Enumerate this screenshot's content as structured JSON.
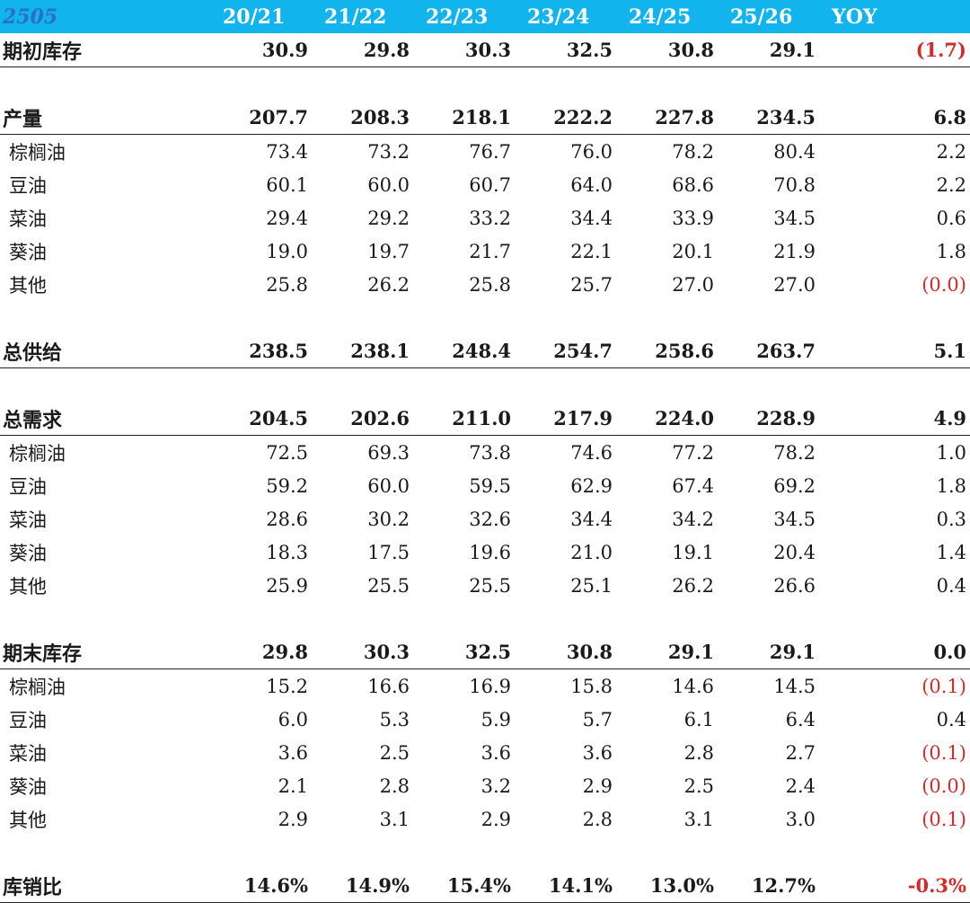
{
  "header": {
    "label": "2505",
    "years": [
      "20/21",
      "21/22",
      "22/23",
      "23/24",
      "24/25",
      "25/26"
    ],
    "yoy_label": "YOY"
  },
  "rows": [
    {
      "label": "期初库存",
      "values": [
        "30.9",
        "29.8",
        "30.3",
        "32.5",
        "30.8",
        "29.1"
      ],
      "yoy": "(1.7)"
    },
    {
      "label": "产量",
      "values": [
        "207.7",
        "208.3",
        "218.1",
        "222.2",
        "227.8",
        "234.5"
      ],
      "yoy": "6.8"
    },
    {
      "label": "棕榈油",
      "values": [
        "73.4",
        "73.2",
        "76.7",
        "76.0",
        "78.2",
        "80.4"
      ],
      "yoy": "2.2"
    },
    {
      "label": "豆油",
      "values": [
        "60.1",
        "60.0",
        "60.7",
        "64.0",
        "68.6",
        "70.8"
      ],
      "yoy": "2.2"
    },
    {
      "label": "菜油",
      "values": [
        "29.4",
        "29.2",
        "33.2",
        "34.4",
        "33.9",
        "34.5"
      ],
      "yoy": "0.6"
    },
    {
      "label": "葵油",
      "values": [
        "19.0",
        "19.7",
        "21.7",
        "22.1",
        "20.1",
        "21.9"
      ],
      "yoy": "1.8"
    },
    {
      "label": "其他",
      "values": [
        "25.8",
        "26.2",
        "25.8",
        "25.7",
        "27.0",
        "27.0"
      ],
      "yoy": "(0.0)"
    },
    {
      "label": "总供给",
      "values": [
        "238.5",
        "238.1",
        "248.4",
        "254.7",
        "258.6",
        "263.7"
      ],
      "yoy": "5.1"
    },
    {
      "label": "总需求",
      "values": [
        "204.5",
        "202.6",
        "211.0",
        "217.9",
        "224.0",
        "228.9"
      ],
      "yoy": "4.9"
    },
    {
      "label": "棕榈油",
      "values": [
        "72.5",
        "69.3",
        "73.8",
        "74.6",
        "77.2",
        "78.2"
      ],
      "yoy": "1.0"
    },
    {
      "label": "豆油",
      "values": [
        "59.2",
        "60.0",
        "59.5",
        "62.9",
        "67.4",
        "69.2"
      ],
      "yoy": "1.8"
    },
    {
      "label": "菜油",
      "values": [
        "28.6",
        "30.2",
        "32.6",
        "34.4",
        "34.2",
        "34.5"
      ],
      "yoy": "0.3"
    },
    {
      "label": "葵油",
      "values": [
        "18.3",
        "17.5",
        "19.6",
        "21.0",
        "19.1",
        "20.4"
      ],
      "yoy": "1.4"
    },
    {
      "label": "其他",
      "values": [
        "25.9",
        "25.5",
        "25.5",
        "25.1",
        "26.2",
        "26.6"
      ],
      "yoy": "0.4"
    },
    {
      "label": "期末库存",
      "values": [
        "29.8",
        "30.3",
        "32.5",
        "30.8",
        "29.1",
        "29.1"
      ],
      "yoy": "0.0"
    },
    {
      "label": "棕榈油",
      "values": [
        "15.2",
        "16.6",
        "16.9",
        "15.8",
        "14.6",
        "14.5"
      ],
      "yoy": "(0.1)"
    },
    {
      "label": "豆油",
      "values": [
        "6.0",
        "5.3",
        "5.9",
        "5.7",
        "6.1",
        "6.4"
      ],
      "yoy": "0.4"
    },
    {
      "label": "菜油",
      "values": [
        "3.6",
        "2.5",
        "3.6",
        "3.6",
        "2.8",
        "2.7"
      ],
      "yoy": "(0.1)"
    },
    {
      "label": "葵油",
      "values": [
        "2.1",
        "2.8",
        "3.2",
        "2.9",
        "2.5",
        "2.4"
      ],
      "yoy": "(0.0)"
    },
    {
      "label": "其他",
      "values": [
        "2.9",
        "3.1",
        "2.9",
        "2.8",
        "3.1",
        "3.0"
      ],
      "yoy": "(0.1)"
    },
    {
      "label": "库销比",
      "values": [
        "14.6%",
        "14.9%",
        "15.4%",
        "14.1%",
        "13.0%",
        "12.7%"
      ],
      "yoy": "-0.3%"
    }
  ],
  "colors": {
    "header_bg": "#11b4ec",
    "header_label": "#2b70c4",
    "negative": "#d62a2a"
  }
}
